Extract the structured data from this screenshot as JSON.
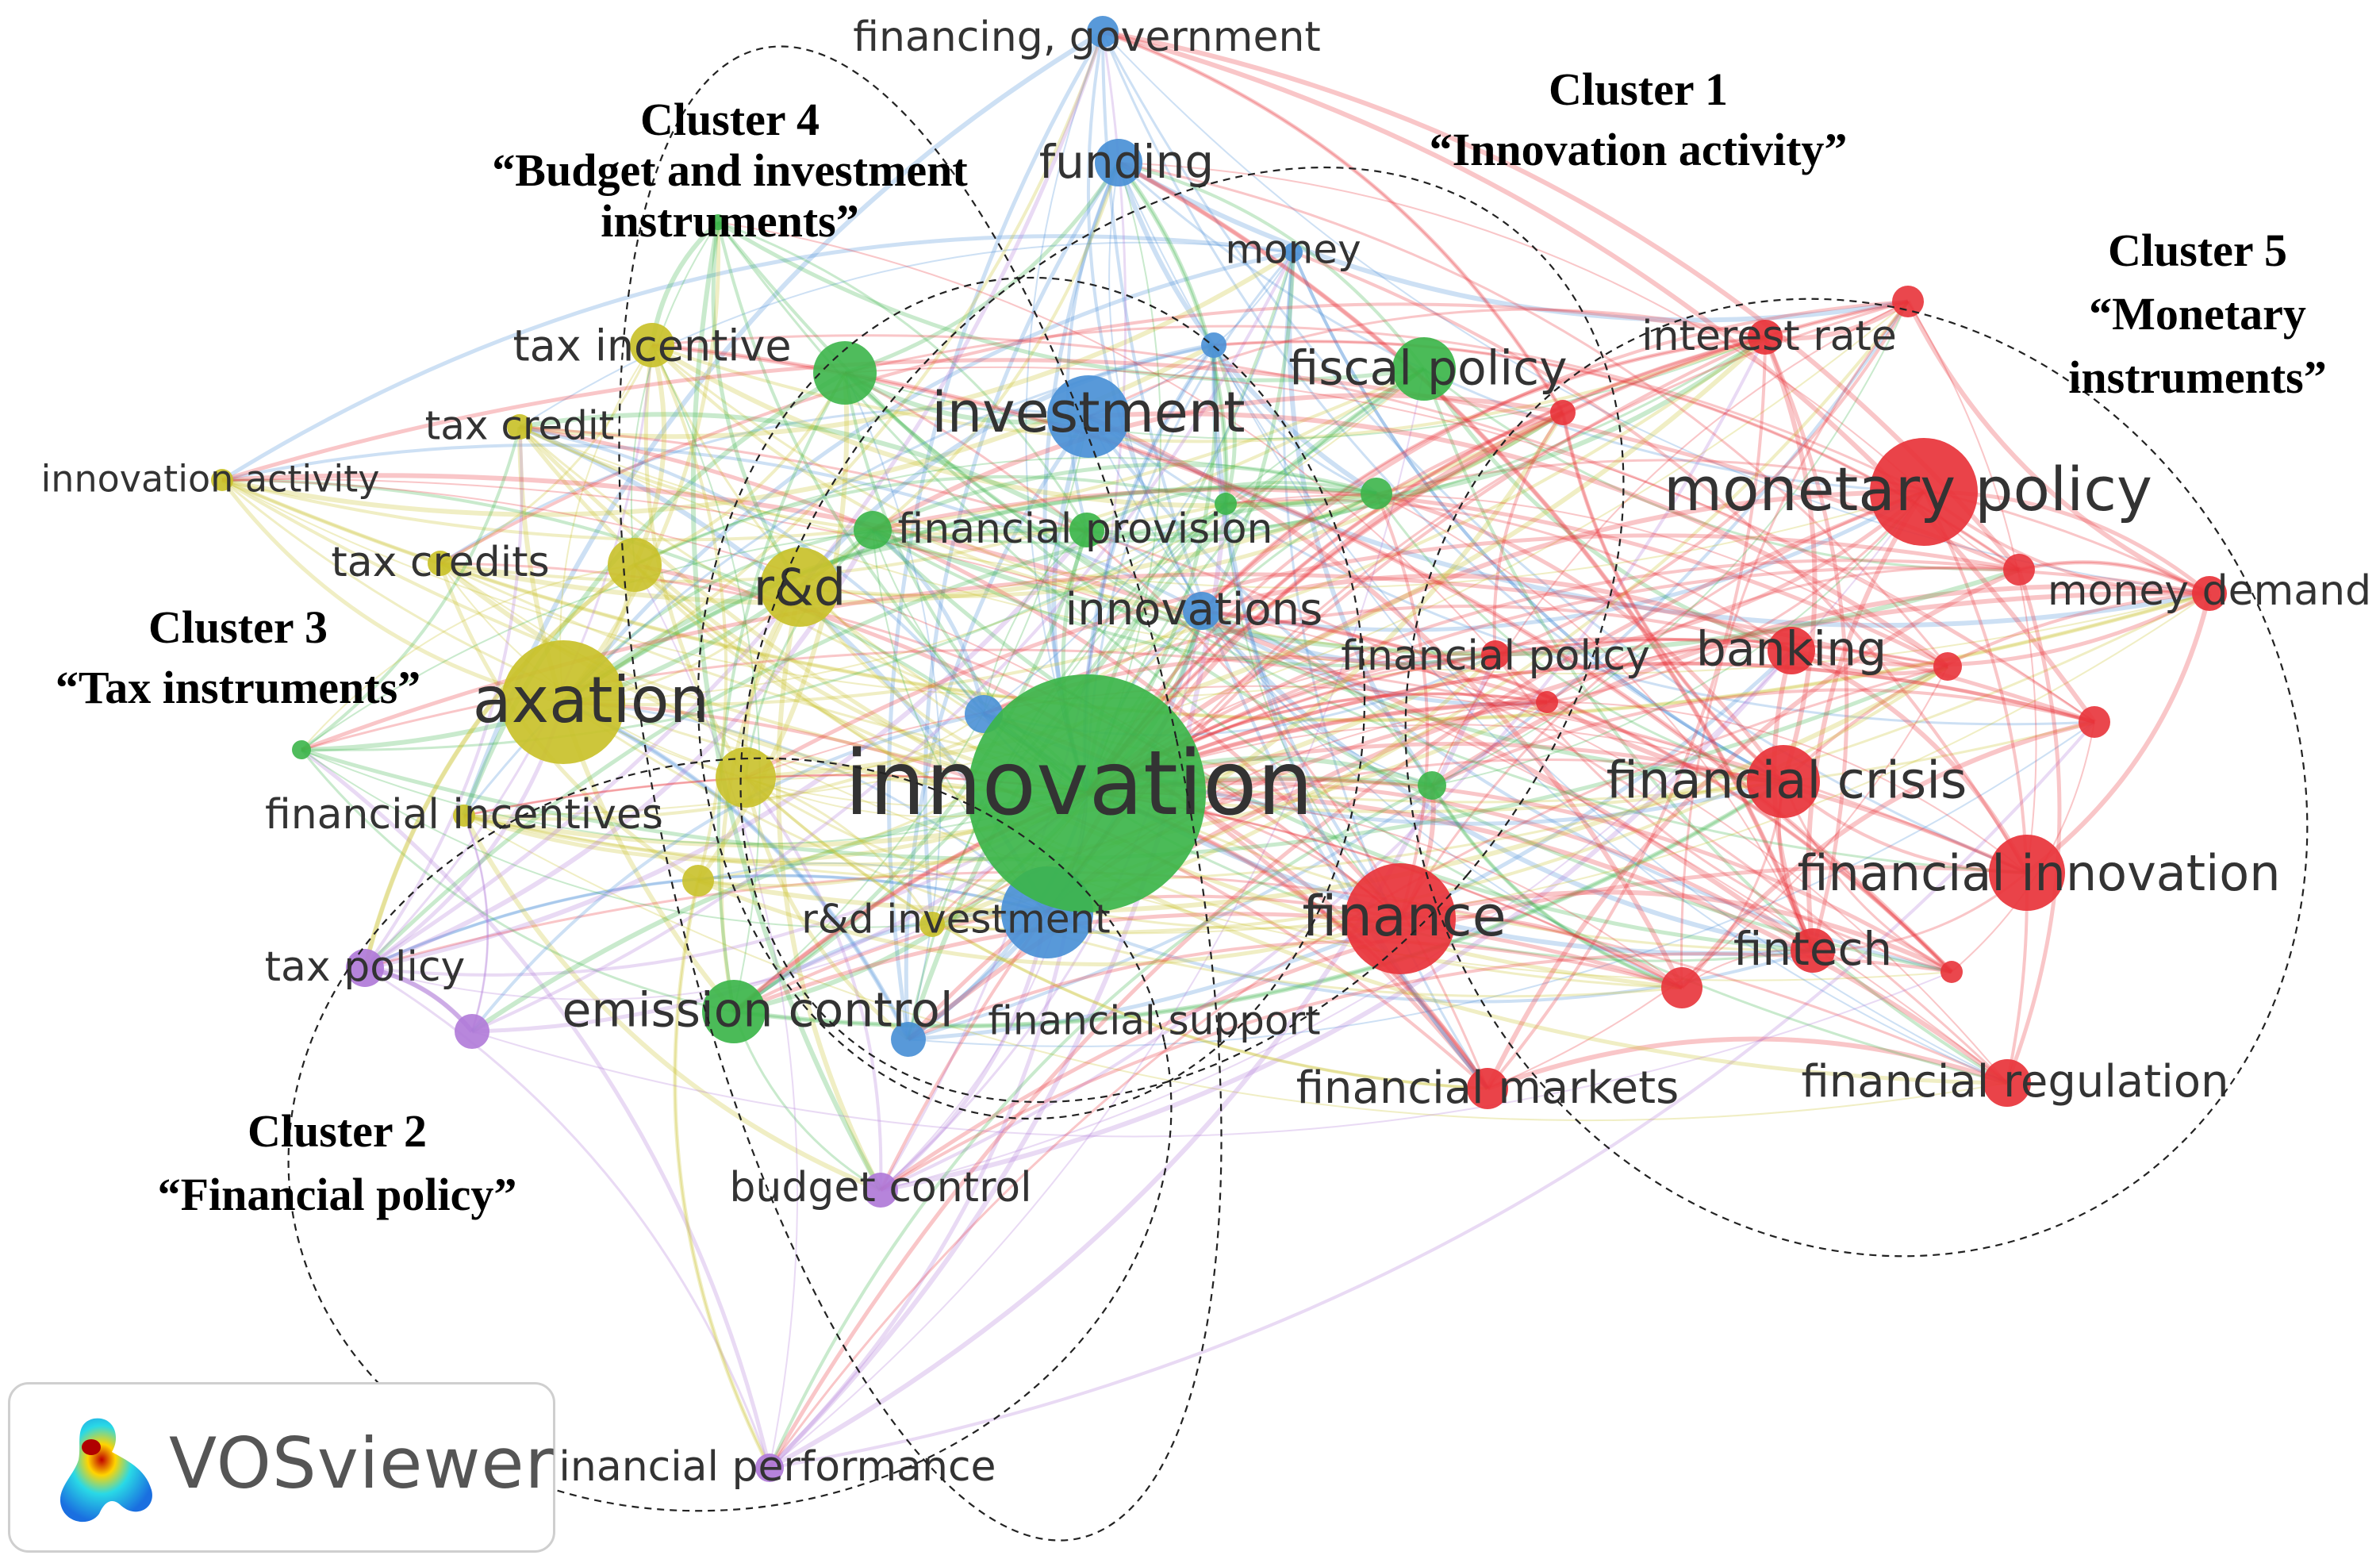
{
  "colors": {
    "cluster_red": "#e8333a",
    "cluster_green": "#3cb54a",
    "cluster_blue": "#4a90d6",
    "cluster_yellow": "#c9c12a",
    "cluster_purple": "#b07ad8"
  },
  "nodes": [
    {
      "id": "financing-government",
      "label": "financing, government",
      "color": "blue"
    },
    {
      "id": "funding",
      "label": "funding",
      "color": "blue"
    },
    {
      "id": "money",
      "label": "money",
      "color": "blue"
    },
    {
      "id": "investment",
      "label": "investment",
      "color": "blue"
    },
    {
      "id": "innovations",
      "label": "innovations",
      "color": "blue"
    },
    {
      "id": "rd-investment",
      "label": "r&d investment",
      "color": "blue"
    },
    {
      "id": "financial-support",
      "label": "financial support",
      "color": "blue"
    },
    {
      "id": "tax-incentive",
      "label": "tax incentive",
      "color": "yellow"
    },
    {
      "id": "tax-credit",
      "label": "tax credit",
      "color": "yellow"
    },
    {
      "id": "innovation-activity",
      "label": "innovation activity",
      "color": "yellow"
    },
    {
      "id": "tax-credits",
      "label": "tax credits",
      "color": "yellow"
    },
    {
      "id": "rd",
      "label": "r&d",
      "color": "yellow"
    },
    {
      "id": "taxation",
      "label": "axation",
      "color": "yellow"
    },
    {
      "id": "financial-incentives",
      "label": "financial incentives",
      "color": "yellow"
    },
    {
      "id": "fiscal-policy",
      "label": "fiscal policy",
      "color": "green"
    },
    {
      "id": "financial-provision",
      "label": "financial provision",
      "color": "green"
    },
    {
      "id": "innovation",
      "label": "innovation",
      "color": "green"
    },
    {
      "id": "emission-control",
      "label": "emission control",
      "color": "green"
    },
    {
      "id": "tax-policy",
      "label": "tax policy",
      "color": "purple"
    },
    {
      "id": "budget-control",
      "label": "budget control",
      "color": "purple"
    },
    {
      "id": "financial-performance",
      "label": "inancial performance",
      "color": "purple"
    },
    {
      "id": "interest-rate",
      "label": "interest rate",
      "color": "red"
    },
    {
      "id": "monetary-policy",
      "label": "monetary policy",
      "color": "red"
    },
    {
      "id": "money-demand",
      "label": "money demand",
      "color": "red"
    },
    {
      "id": "financial-policy",
      "label": "financial policy",
      "color": "red"
    },
    {
      "id": "banking",
      "label": "banking",
      "color": "red"
    },
    {
      "id": "financial-crisis",
      "label": "financial crisis",
      "color": "red"
    },
    {
      "id": "financial-innovation",
      "label": "financial innovation",
      "color": "red"
    },
    {
      "id": "finance",
      "label": "finance",
      "color": "red"
    },
    {
      "id": "fintech",
      "label": "fintech",
      "color": "red"
    },
    {
      "id": "financial-markets",
      "label": "financial markets",
      "color": "red"
    },
    {
      "id": "financial-regulation",
      "label": "financial regulation",
      "color": "red"
    }
  ],
  "clusters": [
    {
      "id": "cluster-1",
      "title": "Cluster 1",
      "subtitle": "“Innovation activity”"
    },
    {
      "id": "cluster-2",
      "title": "Cluster 2",
      "subtitle": "“Financial policy”"
    },
    {
      "id": "cluster-3",
      "title": "Cluster 3",
      "subtitle": "“Tax instruments”"
    },
    {
      "id": "cluster-4",
      "title": "Cluster 4",
      "subtitle": "“Budget and investment",
      "subtitle2": "instruments”"
    },
    {
      "id": "cluster-5",
      "title": "Cluster 5",
      "subtitle": "“Monetary",
      "subtitle2": "instruments”"
    }
  ],
  "badge": {
    "text": "VOSviewer",
    "logo_icon": "vosviewer-logo-icon"
  }
}
